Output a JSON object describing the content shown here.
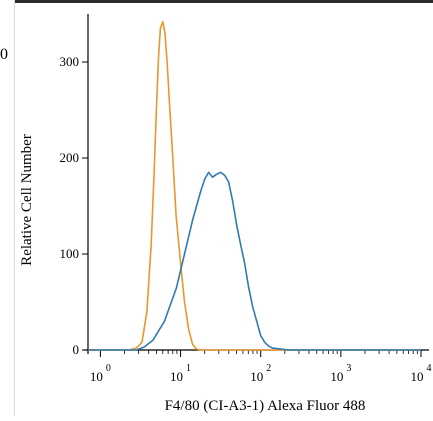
{
  "fragments": {
    "left_edge_text": "0"
  },
  "chart_data": {
    "type": "line",
    "xlabel": "F4/80 (CI-A3-1) Alexa Fluor 488",
    "ylabel": "Relative Cell Number",
    "x_scale": "log",
    "xlim": [
      0.7,
      10000
    ],
    "ylim": [
      0,
      350
    ],
    "x_ticks": [
      {
        "value": 1,
        "base": "10",
        "exp": "0"
      },
      {
        "value": 10,
        "base": "10",
        "exp": "1"
      },
      {
        "value": 100,
        "base": "10",
        "exp": "2"
      },
      {
        "value": 1000,
        "base": "10",
        "exp": "3"
      },
      {
        "value": 10000,
        "base": "10",
        "exp": "4"
      }
    ],
    "y_ticks": [
      0,
      100,
      200,
      300
    ],
    "grid": false,
    "series": [
      {
        "color": "#e8962e",
        "points": [
          [
            0.7,
            0
          ],
          [
            2.2,
            0
          ],
          [
            2.8,
            2
          ],
          [
            3.3,
            8
          ],
          [
            3.8,
            40
          ],
          [
            4.3,
            110
          ],
          [
            4.7,
            190
          ],
          [
            5.0,
            250
          ],
          [
            5.3,
            305
          ],
          [
            5.6,
            335
          ],
          [
            6.0,
            342
          ],
          [
            6.4,
            330
          ],
          [
            6.8,
            300
          ],
          [
            7.3,
            255
          ],
          [
            8.0,
            200
          ],
          [
            8.8,
            140
          ],
          [
            10.0,
            90
          ],
          [
            11.2,
            50
          ],
          [
            12.6,
            22
          ],
          [
            14.1,
            6
          ],
          [
            15.8,
            1
          ],
          [
            17.8,
            0
          ],
          [
            10000,
            0
          ]
        ]
      },
      {
        "color": "#2f7ab0",
        "points": [
          [
            0.7,
            0
          ],
          [
            2.8,
            0
          ],
          [
            3.5,
            3
          ],
          [
            4.5,
            10
          ],
          [
            6.3,
            30
          ],
          [
            8.9,
            65
          ],
          [
            11.2,
            100
          ],
          [
            14.1,
            135
          ],
          [
            17.8,
            165
          ],
          [
            20.0,
            178
          ],
          [
            22.4,
            185
          ],
          [
            25.1,
            180
          ],
          [
            28.2,
            183
          ],
          [
            31.6,
            185
          ],
          [
            35.5,
            182
          ],
          [
            39.8,
            175
          ],
          [
            44.7,
            155
          ],
          [
            50.1,
            130
          ],
          [
            56.2,
            110
          ],
          [
            63.1,
            90
          ],
          [
            70.8,
            65
          ],
          [
            79.4,
            45
          ],
          [
            89.1,
            30
          ],
          [
            100,
            15
          ],
          [
            112,
            8
          ],
          [
            126,
            4
          ],
          [
            141,
            2
          ],
          [
            178,
            1
          ],
          [
            224,
            0
          ],
          [
            10000,
            0
          ]
        ]
      }
    ]
  }
}
